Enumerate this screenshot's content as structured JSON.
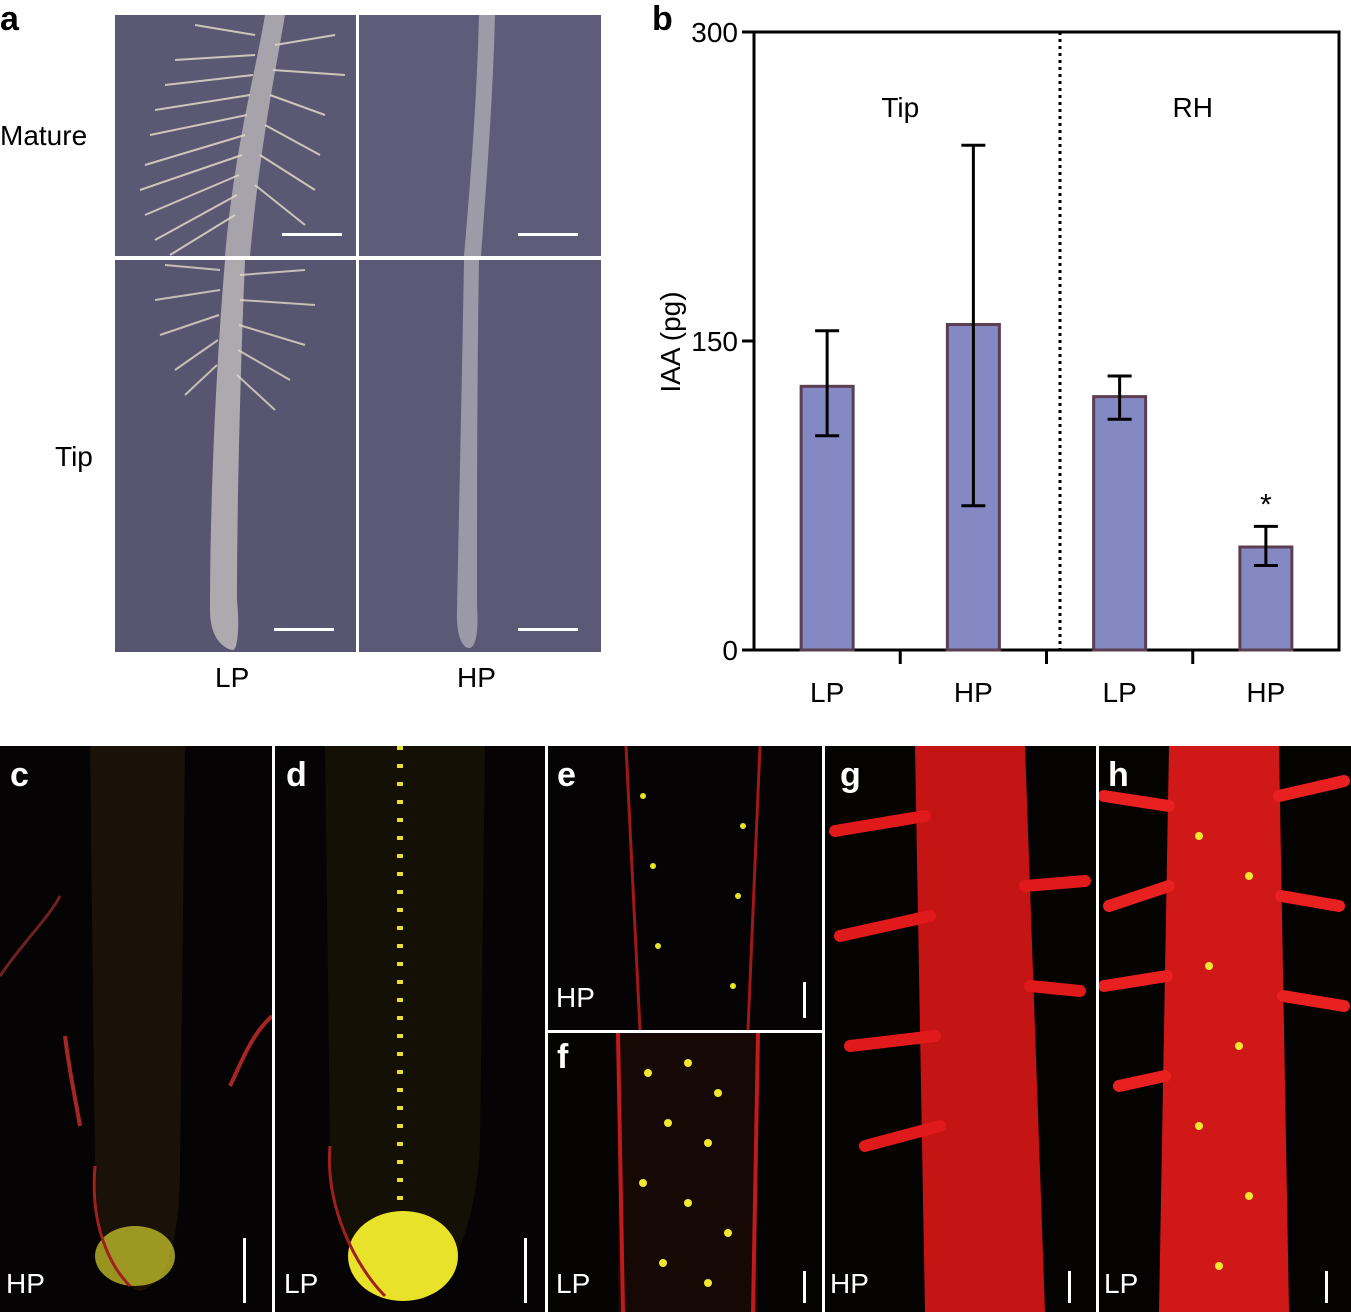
{
  "panel_a": {
    "letter": "a",
    "row_labels": [
      "Mature",
      "Tip"
    ],
    "col_labels": [
      "LP",
      "HP"
    ]
  },
  "panel_b": {
    "letter": "b"
  },
  "chart_data": {
    "type": "bar",
    "title": "",
    "ylabel": "IAA (pg)",
    "xlabel": "",
    "ylim": [
      0,
      300
    ],
    "yticks": [
      0,
      150,
      300
    ],
    "groups": [
      "Tip",
      "RH"
    ],
    "categories": [
      "LP",
      "HP",
      "LP",
      "HP"
    ],
    "values": [
      128,
      158,
      123,
      50
    ],
    "error_high": [
      155,
      245,
      133,
      60
    ],
    "error_low": [
      104,
      70,
      112,
      41
    ],
    "annotations": [
      {
        "category_index": 3,
        "text": "*"
      }
    ],
    "bar_color": "#8489c4",
    "bar_edge_color": "#5a3e52"
  },
  "micrographs": [
    {
      "letter": "c",
      "label": "HP"
    },
    {
      "letter": "d",
      "label": "LP"
    },
    {
      "letter": "e",
      "label": "HP"
    },
    {
      "letter": "f",
      "label": "LP"
    },
    {
      "letter": "g",
      "label": "HP"
    },
    {
      "letter": "h",
      "label": "LP"
    }
  ]
}
